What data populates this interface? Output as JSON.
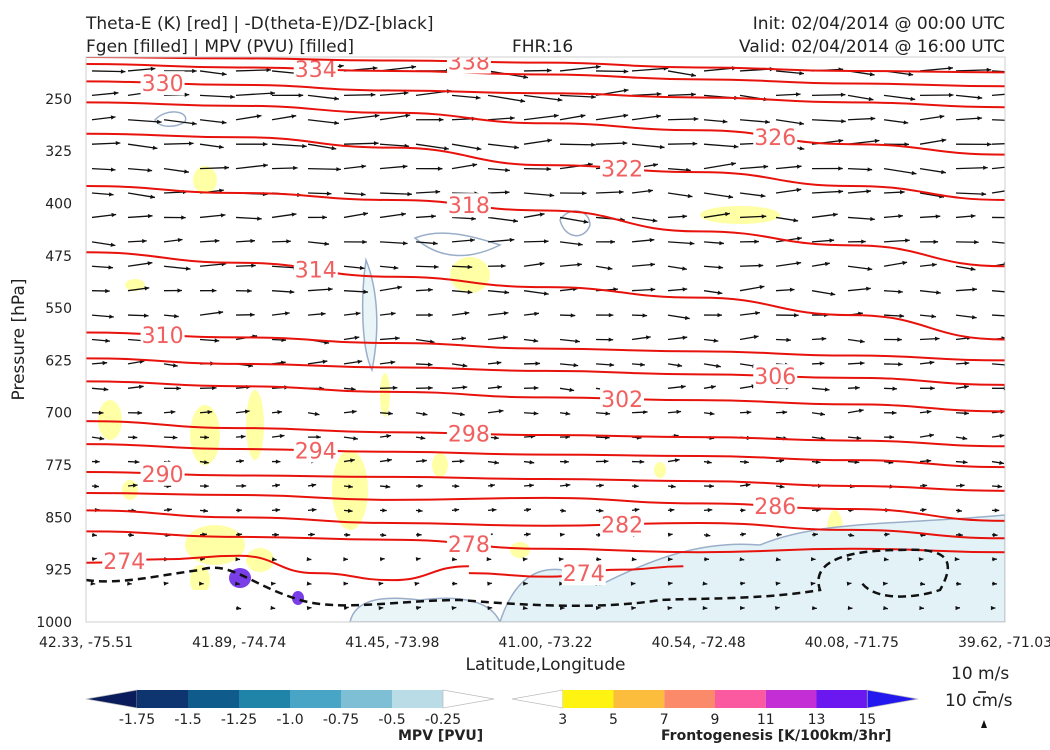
{
  "header": {
    "title_line1": "Theta-E (K) [red] | -D(theta-E)/DZ-[black]",
    "title_line2": "Fgen [filled] | MPV (PVU) [filled]",
    "fhr": "FHR:16",
    "init": "Init: 02/04/2014 @ 00:00 UTC",
    "valid": "Valid: 02/04/2014 @ 16:00 UTC"
  },
  "chart_data": {
    "type": "cross-section",
    "xlabel": "Latitude,Longitude",
    "ylabel": "Pressure [hPa]",
    "x_ticks": [
      "42.33, -75.51",
      "41.89, -74.74",
      "41.45, -73.98",
      "41.00, -73.22",
      "40.54, -72.48",
      "40.08, -71.75",
      "39.62, -71.03"
    ],
    "y_ticks": [
      250,
      325,
      400,
      475,
      550,
      625,
      700,
      775,
      850,
      925,
      1000
    ],
    "ylim": [
      1000,
      190
    ],
    "y_scale": "inverted-linear",
    "theta_e_contours": [
      {
        "value": 274,
        "label": "274",
        "points": [
          [
            0.0,
            915
          ],
          [
            0.5,
            910
          ],
          [
            1.0,
            905
          ],
          [
            1.5,
            930
          ],
          [
            2.0,
            940
          ],
          [
            2.5,
            920
          ]
        ]
      },
      {
        "value": 274,
        "label": "274",
        "points": [
          [
            2.5,
            930
          ],
          [
            3.0,
            935
          ],
          [
            3.5,
            925
          ],
          [
            3.9,
            920
          ]
        ]
      },
      {
        "value": 278,
        "label": "278",
        "points": [
          [
            0.0,
            870
          ],
          [
            1.0,
            878
          ],
          [
            2.0,
            882
          ],
          [
            3.0,
            895
          ],
          [
            4.0,
            900
          ],
          [
            5.0,
            895
          ],
          [
            6.0,
            900
          ]
        ]
      },
      {
        "value": 282,
        "label": "282",
        "points": [
          [
            0.0,
            840
          ],
          [
            1.0,
            850
          ],
          [
            2.0,
            858
          ],
          [
            3.0,
            862
          ],
          [
            4.0,
            858
          ],
          [
            5.0,
            868
          ],
          [
            6.0,
            880
          ]
        ]
      },
      {
        "value": 286,
        "label": "286",
        "points": [
          [
            0.0,
            815
          ],
          [
            1.0,
            818
          ],
          [
            2.0,
            825
          ],
          [
            3.0,
            822
          ],
          [
            4.0,
            830
          ],
          [
            5.0,
            838
          ],
          [
            6.0,
            855
          ]
        ]
      },
      {
        "value": 290,
        "label": "290",
        "points": [
          [
            0.0,
            785
          ],
          [
            1.0,
            790
          ],
          [
            2.0,
            792
          ],
          [
            3.0,
            795
          ],
          [
            4.0,
            798
          ],
          [
            5.0,
            805
          ],
          [
            6.0,
            812
          ]
        ]
      },
      {
        "value": 294,
        "label": "294",
        "points": [
          [
            0.0,
            745
          ],
          [
            1.0,
            752
          ],
          [
            2.0,
            756
          ],
          [
            3.0,
            760
          ],
          [
            4.0,
            762
          ],
          [
            5.0,
            768
          ],
          [
            6.0,
            778
          ]
        ]
      },
      {
        "value": 298,
        "label": "298",
        "points": [
          [
            0.0,
            712
          ],
          [
            1.0,
            722
          ],
          [
            2.0,
            728
          ],
          [
            3.0,
            732
          ],
          [
            4.0,
            735
          ],
          [
            5.0,
            740
          ],
          [
            6.0,
            748
          ]
        ]
      },
      {
        "value": 302,
        "label": "302",
        "points": [
          [
            0.0,
            655
          ],
          [
            1.0,
            662
          ],
          [
            2.0,
            670
          ],
          [
            3.0,
            678
          ],
          [
            4.0,
            682
          ],
          [
            5.0,
            688
          ],
          [
            6.0,
            698
          ]
        ]
      },
      {
        "value": 306,
        "label": "306",
        "points": [
          [
            0.0,
            622
          ],
          [
            1.0,
            630
          ],
          [
            2.0,
            635
          ],
          [
            3.0,
            640
          ],
          [
            4.0,
            645
          ],
          [
            5.0,
            650
          ],
          [
            6.0,
            660
          ]
        ]
      },
      {
        "value": 310,
        "label": "310",
        "points": [
          [
            0.0,
            585
          ],
          [
            1.0,
            592
          ],
          [
            2.0,
            600
          ],
          [
            3.0,
            608
          ],
          [
            4.0,
            612
          ],
          [
            5.0,
            618
          ],
          [
            6.0,
            625
          ]
        ]
      },
      {
        "value": 314,
        "label": "314",
        "points": [
          [
            0.0,
            470
          ],
          [
            1.0,
            485
          ],
          [
            2.0,
            505
          ],
          [
            3.0,
            520
          ],
          [
            4.0,
            535
          ],
          [
            5.0,
            560
          ],
          [
            6.0,
            595
          ]
        ]
      },
      {
        "value": 318,
        "label": "318",
        "points": [
          [
            0.0,
            375
          ],
          [
            1.0,
            385
          ],
          [
            2.0,
            395
          ],
          [
            3.0,
            410
          ],
          [
            4.0,
            440
          ],
          [
            5.0,
            460
          ],
          [
            6.0,
            490
          ]
        ]
      },
      {
        "value": 322,
        "label": "322",
        "points": [
          [
            0.0,
            300
          ],
          [
            1.0,
            305
          ],
          [
            2.0,
            320
          ],
          [
            3.0,
            345
          ],
          [
            4.0,
            355
          ],
          [
            5.0,
            375
          ],
          [
            6.0,
            395
          ]
        ]
      },
      {
        "value": 326,
        "label": "326",
        "points": [
          [
            0.0,
            255
          ],
          [
            1.0,
            260
          ],
          [
            2.0,
            270
          ],
          [
            3.0,
            285
          ],
          [
            4.0,
            295
          ],
          [
            5.0,
            315
          ],
          [
            6.0,
            330
          ]
        ]
      },
      {
        "value": 330,
        "label": "330",
        "points": [
          [
            0.0,
            225
          ],
          [
            1.0,
            230
          ],
          [
            2.0,
            238
          ],
          [
            3.0,
            242
          ],
          [
            4.0,
            248
          ],
          [
            5.0,
            255
          ],
          [
            6.0,
            262
          ]
        ]
      },
      {
        "value": 334,
        "label": "334",
        "points": [
          [
            0.0,
            200
          ],
          [
            1.0,
            205
          ],
          [
            2.0,
            210
          ],
          [
            3.0,
            215
          ],
          [
            4.0,
            222
          ],
          [
            5.0,
            228
          ],
          [
            6.0,
            232
          ]
        ]
      },
      {
        "value": 338,
        "label": "338",
        "points": [
          [
            0.0,
            190
          ],
          [
            1.0,
            192
          ],
          [
            2.0,
            195
          ],
          [
            3.0,
            198
          ],
          [
            4.0,
            205
          ],
          [
            5.0,
            210
          ],
          [
            6.0,
            212
          ]
        ]
      }
    ],
    "wind_speed_reference": [
      "10 m/s",
      "10 cm/s"
    ],
    "colorbar_mpv": {
      "label": "MPV [PVU]",
      "ticks": [
        "-1.75",
        "-1.5",
        "-1.25",
        "-1.0",
        "-0.75",
        "-0.5",
        "-0.25"
      ],
      "colors": [
        "#0b1c5c",
        "#0e3570",
        "#0f5c8c",
        "#1f84a8",
        "#48a5c5",
        "#7fbfd5",
        "#b9dce6",
        "#ffffff"
      ]
    },
    "colorbar_fgen": {
      "label": "Frontogenesis [K/100km/3hr]",
      "ticks": [
        "3",
        "5",
        "7",
        "9",
        "11",
        "13",
        "15"
      ],
      "colors": [
        "#ffffff",
        "#fff312",
        "#fdbd3c",
        "#fb8a6a",
        "#fb5aa0",
        "#c32fd5",
        "#6a18ef",
        "#2319ef"
      ]
    }
  }
}
